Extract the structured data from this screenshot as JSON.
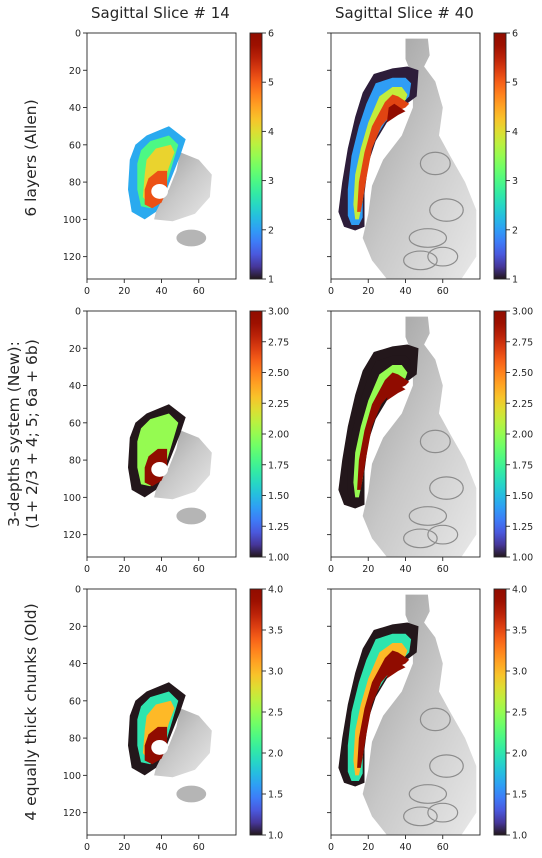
{
  "column_titles": [
    "Sagittal Slice # 14",
    "Sagittal Slice # 40"
  ],
  "row_labels": [
    [
      "6 layers (Allen)"
    ],
    [
      "3-depths system (New):",
      "(1+ 2/3 + 4; 5; 6a + 6b)"
    ],
    [
      "4 equally thick chunks (Old)"
    ]
  ],
  "chart_data": [
    {
      "type": "heatmap",
      "title": "Sagittal Slice # 14",
      "row": "6 layers (Allen)",
      "xlim": [
        0,
        80
      ],
      "ylim": [
        132,
        0
      ],
      "x_ticks": [
        "0",
        "20",
        "40",
        "60"
      ],
      "y_ticks": [
        "0",
        "20",
        "40",
        "60",
        "80",
        "100",
        "120"
      ],
      "colorbar": {
        "colormap": "turbo",
        "range": [
          1,
          6
        ],
        "ticks": [
          "1",
          "2",
          "3",
          "4",
          "5",
          "6"
        ]
      }
    },
    {
      "type": "heatmap",
      "title": "Sagittal Slice # 40",
      "row": "6 layers (Allen)",
      "xlim": [
        0,
        80
      ],
      "ylim": [
        132,
        0
      ],
      "x_ticks": [
        "0",
        "20",
        "40",
        "60"
      ],
      "y_ticks": [
        "0",
        "20",
        "40",
        "60",
        "80",
        "100",
        "120"
      ],
      "colorbar": {
        "colormap": "turbo",
        "range": [
          1,
          6
        ],
        "ticks": [
          "1",
          "2",
          "3",
          "4",
          "5",
          "6"
        ]
      }
    },
    {
      "type": "heatmap",
      "title": "Sagittal Slice # 14",
      "row": "3-depths system (New)",
      "xlim": [
        0,
        80
      ],
      "ylim": [
        132,
        0
      ],
      "x_ticks": [
        "0",
        "20",
        "40",
        "60"
      ],
      "y_ticks": [
        "0",
        "20",
        "40",
        "60",
        "80",
        "100",
        "120"
      ],
      "colorbar": {
        "colormap": "turbo",
        "range": [
          1,
          3
        ],
        "ticks": [
          "1.00",
          "1.25",
          "1.50",
          "1.75",
          "2.00",
          "2.25",
          "2.50",
          "2.75",
          "3.00"
        ]
      }
    },
    {
      "type": "heatmap",
      "title": "Sagittal Slice # 40",
      "row": "3-depths system (New)",
      "xlim": [
        0,
        80
      ],
      "ylim": [
        132,
        0
      ],
      "x_ticks": [
        "0",
        "20",
        "40",
        "60"
      ],
      "y_ticks": [
        "0",
        "20",
        "40",
        "60",
        "80",
        "100",
        "120"
      ],
      "colorbar": {
        "colormap": "turbo",
        "range": [
          1,
          3
        ],
        "ticks": [
          "1.00",
          "1.25",
          "1.50",
          "1.75",
          "2.00",
          "2.25",
          "2.50",
          "2.75",
          "3.00"
        ]
      }
    },
    {
      "type": "heatmap",
      "title": "Sagittal Slice # 14",
      "row": "4 equally thick chunks (Old)",
      "xlim": [
        0,
        80
      ],
      "ylim": [
        132,
        0
      ],
      "x_ticks": [
        "0",
        "20",
        "40",
        "60"
      ],
      "y_ticks": [
        "0",
        "20",
        "40",
        "60",
        "80",
        "100",
        "120"
      ],
      "colorbar": {
        "colormap": "turbo",
        "range": [
          1,
          4
        ],
        "ticks": [
          "1.0",
          "1.5",
          "2.0",
          "2.5",
          "3.0",
          "3.5",
          "4.0"
        ]
      }
    },
    {
      "type": "heatmap",
      "title": "Sagittal Slice # 40",
      "row": "4 equally thick chunks (Old)",
      "xlim": [
        0,
        80
      ],
      "ylim": [
        132,
        0
      ],
      "x_ticks": [
        "0",
        "20",
        "40",
        "60"
      ],
      "y_ticks": [
        "0",
        "20",
        "40",
        "60",
        "80",
        "100",
        "120"
      ],
      "colorbar": {
        "colormap": "turbo",
        "range": [
          1,
          4
        ],
        "ticks": [
          "1.0",
          "1.5",
          "2.0",
          "2.5",
          "3.0",
          "3.5",
          "4.0"
        ]
      }
    }
  ]
}
